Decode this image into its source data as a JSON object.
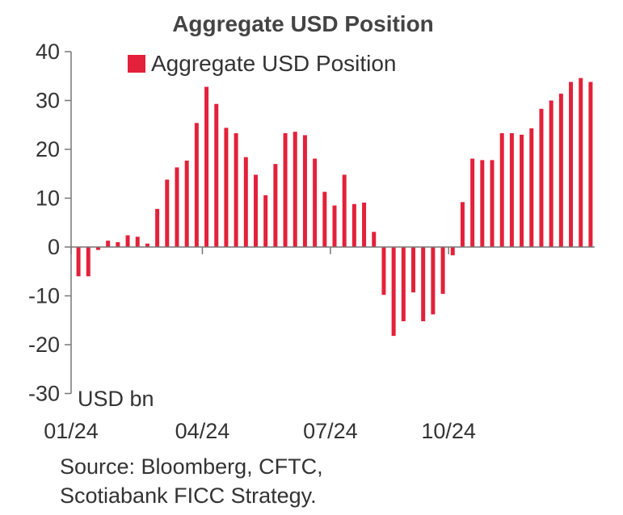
{
  "colors": {
    "bar": "#e3213a",
    "axis": "#777777",
    "text": "#333333"
  },
  "chart_data": {
    "type": "bar",
    "title": "Aggregate USD Position",
    "legend": [
      "Aggregate USD Position"
    ],
    "legend_position": "top-left",
    "ylabel": "USD bn",
    "xlabel": "",
    "ylim": [
      -30,
      40
    ],
    "yticks": [
      -30,
      -20,
      -10,
      0,
      10,
      20,
      30,
      40
    ],
    "xtick_labels": [
      "01/24",
      "04/24",
      "07/24",
      "10/24"
    ],
    "xtick_bar_index": [
      0,
      13,
      26,
      38
    ],
    "grid": false,
    "series": [
      {
        "name": "Aggregate USD Position",
        "values": [
          -6,
          -6,
          -0.6,
          1.3,
          1.0,
          2.4,
          2.1,
          0.7,
          7.8,
          13.8,
          16.3,
          17.7,
          25.4,
          32.8,
          29.3,
          24.4,
          23.3,
          18.4,
          14.8,
          10.6,
          17.0,
          23.3,
          23.6,
          22.9,
          18.1,
          11.3,
          8.5,
          14.8,
          8.8,
          9.1,
          3.1,
          -9.8,
          -18.2,
          -15.2,
          -9.3,
          -15.2,
          -13.8,
          -9.6,
          -1.7,
          9.2,
          18.1,
          17.8,
          17.8,
          23.3,
          23.3,
          23.0,
          24.3,
          28.3,
          30.0,
          31.4,
          33.8,
          34.6,
          33.8
        ]
      }
    ]
  },
  "source": [
    "Source: Bloomberg, CFTC,",
    "Scotiabank FICC Strategy."
  ]
}
